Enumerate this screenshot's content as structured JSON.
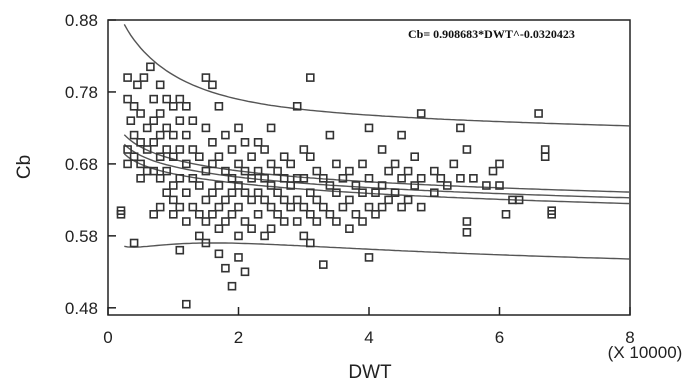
{
  "chart_data": {
    "type": "scatter",
    "xlabel": "DWT",
    "ylabel": "Cb",
    "x_multiplier_label": "(X 10000)",
    "xlim": [
      0,
      8
    ],
    "ylim": [
      0.47,
      0.88
    ],
    "x_ticks": [
      0,
      2,
      4,
      6,
      8
    ],
    "y_ticks": [
      0.48,
      0.58,
      0.68,
      0.78,
      0.88
    ],
    "x_tick_labels": [
      "0",
      "2",
      "4",
      "6",
      "8"
    ],
    "y_tick_labels": [
      "0.48",
      "0.58",
      "0.68",
      "0.78",
      "0.88"
    ],
    "annotation": "Cb= 0.908683*DWT^-0.0320423",
    "grid": false,
    "series": [
      {
        "marker": "square-open",
        "points": [
          [
            0.2,
            0.615
          ],
          [
            0.2,
            0.61
          ],
          [
            0.3,
            0.7
          ],
          [
            0.3,
            0.68
          ],
          [
            0.3,
            0.77
          ],
          [
            0.3,
            0.8
          ],
          [
            0.35,
            0.74
          ],
          [
            0.4,
            0.76
          ],
          [
            0.4,
            0.72
          ],
          [
            0.4,
            0.69
          ],
          [
            0.4,
            0.57
          ],
          [
            0.45,
            0.79
          ],
          [
            0.5,
            0.75
          ],
          [
            0.5,
            0.71
          ],
          [
            0.5,
            0.68
          ],
          [
            0.5,
            0.66
          ],
          [
            0.55,
            0.8
          ],
          [
            0.6,
            0.73
          ],
          [
            0.6,
            0.7
          ],
          [
            0.6,
            0.67
          ],
          [
            0.65,
            0.815
          ],
          [
            0.7,
            0.77
          ],
          [
            0.7,
            0.74
          ],
          [
            0.7,
            0.71
          ],
          [
            0.7,
            0.67
          ],
          [
            0.7,
            0.61
          ],
          [
            0.8,
            0.79
          ],
          [
            0.8,
            0.75
          ],
          [
            0.8,
            0.72
          ],
          [
            0.8,
            0.69
          ],
          [
            0.8,
            0.66
          ],
          [
            0.8,
            0.62
          ],
          [
            0.9,
            0.77
          ],
          [
            0.9,
            0.73
          ],
          [
            0.9,
            0.7
          ],
          [
            0.9,
            0.67
          ],
          [
            0.9,
            0.64
          ],
          [
            1.0,
            0.76
          ],
          [
            1.0,
            0.72
          ],
          [
            1.0,
            0.69
          ],
          [
            1.0,
            0.65
          ],
          [
            1.0,
            0.63
          ],
          [
            1.0,
            0.61
          ],
          [
            1.1,
            0.77
          ],
          [
            1.1,
            0.74
          ],
          [
            1.1,
            0.7
          ],
          [
            1.1,
            0.66
          ],
          [
            1.1,
            0.62
          ],
          [
            1.1,
            0.56
          ],
          [
            1.2,
            0.76
          ],
          [
            1.2,
            0.72
          ],
          [
            1.2,
            0.68
          ],
          [
            1.2,
            0.64
          ],
          [
            1.2,
            0.6
          ],
          [
            1.2,
            0.485
          ],
          [
            1.3,
            0.74
          ],
          [
            1.3,
            0.7
          ],
          [
            1.3,
            0.66
          ],
          [
            1.3,
            0.62
          ],
          [
            1.4,
            0.69
          ],
          [
            1.4,
            0.65
          ],
          [
            1.4,
            0.61
          ],
          [
            1.4,
            0.58
          ],
          [
            1.5,
            0.8
          ],
          [
            1.5,
            0.73
          ],
          [
            1.5,
            0.67
          ],
          [
            1.5,
            0.63
          ],
          [
            1.5,
            0.6
          ],
          [
            1.5,
            0.57
          ],
          [
            1.6,
            0.79
          ],
          [
            1.6,
            0.71
          ],
          [
            1.6,
            0.68
          ],
          [
            1.6,
            0.64
          ],
          [
            1.6,
            0.61
          ],
          [
            1.7,
            0.76
          ],
          [
            1.7,
            0.69
          ],
          [
            1.7,
            0.65
          ],
          [
            1.7,
            0.62
          ],
          [
            1.7,
            0.59
          ],
          [
            1.7,
            0.555
          ],
          [
            1.8,
            0.72
          ],
          [
            1.8,
            0.67
          ],
          [
            1.8,
            0.63
          ],
          [
            1.8,
            0.6
          ],
          [
            1.8,
            0.535
          ],
          [
            1.9,
            0.7
          ],
          [
            1.9,
            0.66
          ],
          [
            1.9,
            0.64
          ],
          [
            1.9,
            0.61
          ],
          [
            1.9,
            0.51
          ],
          [
            2.0,
            0.73
          ],
          [
            2.0,
            0.68
          ],
          [
            2.0,
            0.65
          ],
          [
            2.0,
            0.62
          ],
          [
            2.0,
            0.58
          ],
          [
            2.0,
            0.55
          ],
          [
            2.1,
            0.71
          ],
          [
            2.1,
            0.67
          ],
          [
            2.1,
            0.64
          ],
          [
            2.1,
            0.6
          ],
          [
            2.1,
            0.53
          ],
          [
            2.2,
            0.69
          ],
          [
            2.2,
            0.66
          ],
          [
            2.2,
            0.63
          ],
          [
            2.2,
            0.59
          ],
          [
            2.3,
            0.71
          ],
          [
            2.3,
            0.67
          ],
          [
            2.3,
            0.64
          ],
          [
            2.3,
            0.61
          ],
          [
            2.4,
            0.7
          ],
          [
            2.4,
            0.66
          ],
          [
            2.4,
            0.63
          ],
          [
            2.4,
            0.58
          ],
          [
            2.5,
            0.73
          ],
          [
            2.5,
            0.68
          ],
          [
            2.5,
            0.65
          ],
          [
            2.5,
            0.62
          ],
          [
            2.5,
            0.59
          ],
          [
            2.6,
            0.67
          ],
          [
            2.6,
            0.64
          ],
          [
            2.6,
            0.61
          ],
          [
            2.7,
            0.69
          ],
          [
            2.7,
            0.66
          ],
          [
            2.7,
            0.63
          ],
          [
            2.7,
            0.6
          ],
          [
            2.8,
            0.68
          ],
          [
            2.8,
            0.65
          ],
          [
            2.8,
            0.62
          ],
          [
            2.9,
            0.76
          ],
          [
            2.9,
            0.66
          ],
          [
            2.9,
            0.63
          ],
          [
            2.9,
            0.6
          ],
          [
            3.0,
            0.7
          ],
          [
            3.0,
            0.66
          ],
          [
            3.0,
            0.62
          ],
          [
            3.0,
            0.58
          ],
          [
            3.1,
            0.8
          ],
          [
            3.1,
            0.69
          ],
          [
            3.1,
            0.64
          ],
          [
            3.1,
            0.61
          ],
          [
            3.1,
            0.57
          ],
          [
            3.2,
            0.67
          ],
          [
            3.2,
            0.63
          ],
          [
            3.2,
            0.6
          ],
          [
            3.3,
            0.66
          ],
          [
            3.3,
            0.62
          ],
          [
            3.3,
            0.54
          ],
          [
            3.4,
            0.72
          ],
          [
            3.4,
            0.65
          ],
          [
            3.4,
            0.61
          ],
          [
            3.5,
            0.68
          ],
          [
            3.5,
            0.64
          ],
          [
            3.5,
            0.6
          ],
          [
            3.6,
            0.66
          ],
          [
            3.6,
            0.62
          ],
          [
            3.7,
            0.67
          ],
          [
            3.7,
            0.63
          ],
          [
            3.7,
            0.59
          ],
          [
            3.8,
            0.65
          ],
          [
            3.8,
            0.61
          ],
          [
            3.9,
            0.68
          ],
          [
            3.9,
            0.64
          ],
          [
            3.9,
            0.6
          ],
          [
            4.0,
            0.73
          ],
          [
            4.0,
            0.66
          ],
          [
            4.0,
            0.62
          ],
          [
            4.0,
            0.55
          ],
          [
            4.1,
            0.64
          ],
          [
            4.1,
            0.61
          ],
          [
            4.2,
            0.7
          ],
          [
            4.2,
            0.65
          ],
          [
            4.2,
            0.62
          ],
          [
            4.3,
            0.67
          ],
          [
            4.3,
            0.63
          ],
          [
            4.4,
            0.68
          ],
          [
            4.4,
            0.64
          ],
          [
            4.5,
            0.72
          ],
          [
            4.5,
            0.66
          ],
          [
            4.5,
            0.62
          ],
          [
            4.6,
            0.67
          ],
          [
            4.6,
            0.63
          ],
          [
            4.7,
            0.69
          ],
          [
            4.7,
            0.65
          ],
          [
            4.8,
            0.75
          ],
          [
            4.8,
            0.66
          ],
          [
            4.8,
            0.62
          ],
          [
            5.0,
            0.67
          ],
          [
            5.0,
            0.64
          ],
          [
            5.1,
            0.66
          ],
          [
            5.2,
            0.65
          ],
          [
            5.3,
            0.68
          ],
          [
            5.4,
            0.73
          ],
          [
            5.4,
            0.66
          ],
          [
            5.5,
            0.7
          ],
          [
            5.5,
            0.6
          ],
          [
            5.5,
            0.585
          ],
          [
            5.6,
            0.66
          ],
          [
            5.8,
            0.65
          ],
          [
            5.9,
            0.67
          ],
          [
            6.0,
            0.68
          ],
          [
            6.0,
            0.65
          ],
          [
            6.1,
            0.61
          ],
          [
            6.2,
            0.63
          ],
          [
            6.3,
            0.63
          ],
          [
            6.6,
            0.75
          ],
          [
            6.7,
            0.7
          ],
          [
            6.7,
            0.69
          ],
          [
            6.8,
            0.615
          ],
          [
            6.8,
            0.61
          ]
        ]
      }
    ],
    "fit_lines": {
      "coefficient": 0.908683,
      "exponent": -0.0320423,
      "upper_offset": 0.1,
      "lower_offset": -0.085,
      "confidence_offsets": [
        0.008,
        -0.008
      ]
    }
  }
}
